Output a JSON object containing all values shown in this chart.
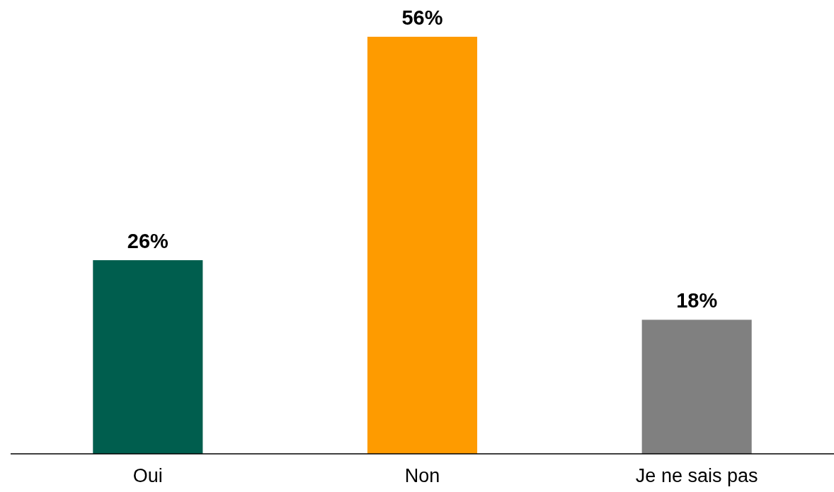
{
  "chart_data": {
    "type": "bar",
    "categories": [
      "Oui",
      "Non",
      "Je ne sais pas"
    ],
    "values": [
      26,
      56,
      18
    ],
    "colors": [
      "#005e4e",
      "#fe9b00",
      "#808080"
    ],
    "data_labels": true,
    "value_labels": [
      "26%",
      "56%",
      "18%"
    ]
  }
}
